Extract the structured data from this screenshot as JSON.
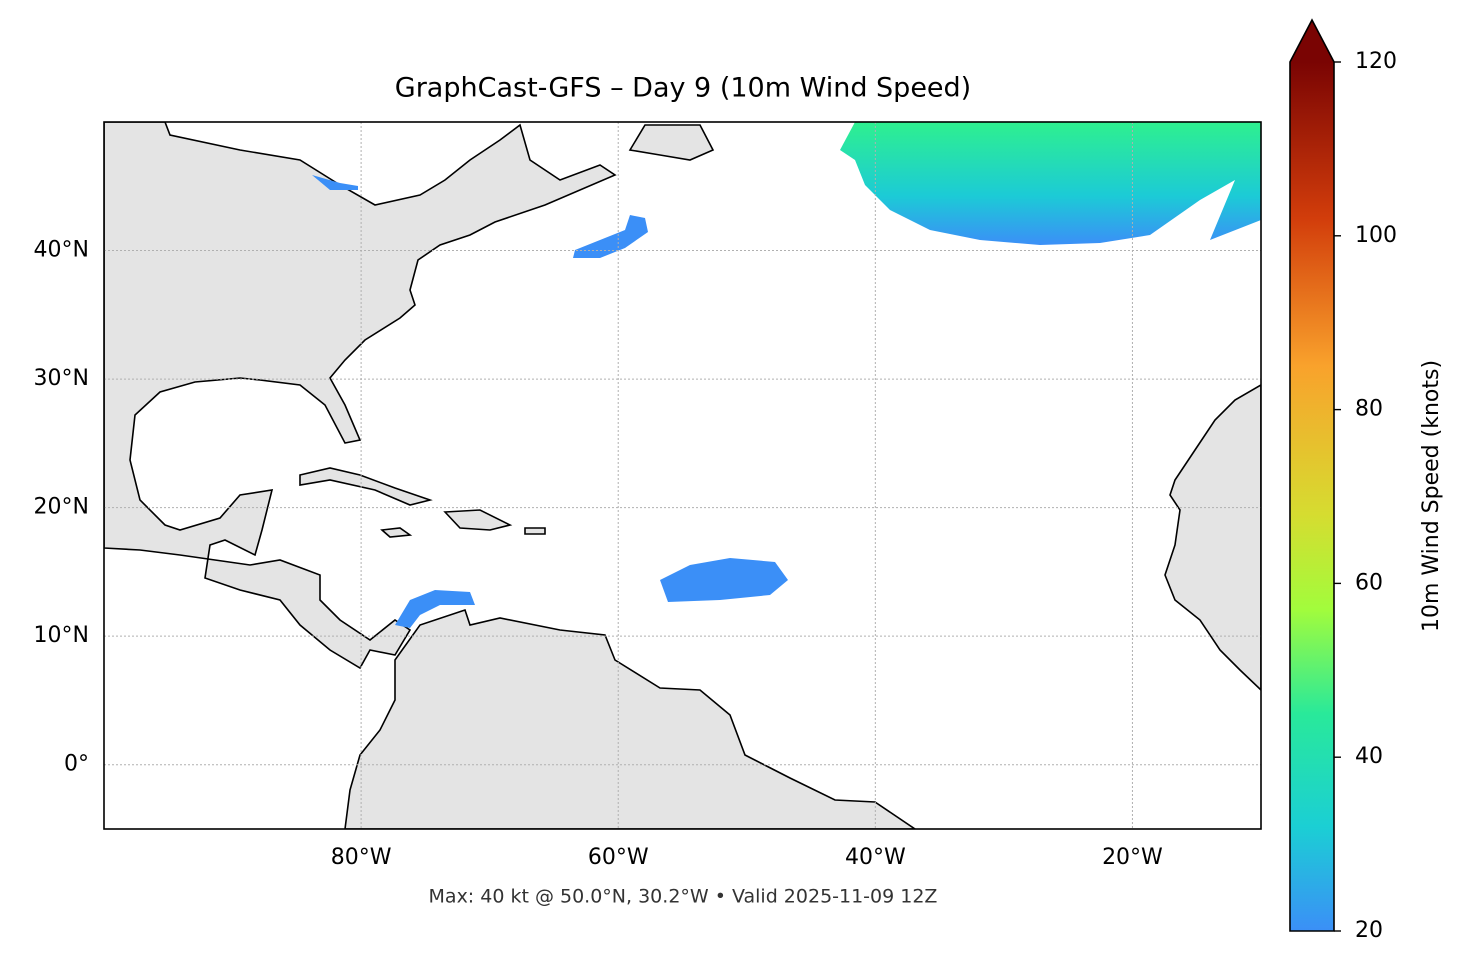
{
  "map": {
    "title": "GraphCast-GFS – Day 9 (10m Wind Speed)",
    "lonlim": [
      -100,
      -10
    ],
    "latlim": [
      -5,
      50
    ],
    "xticks": [
      {
        "value": -80,
        "label": "80°W"
      },
      {
        "value": -60,
        "label": "60°W"
      },
      {
        "value": -40,
        "label": "40°W"
      },
      {
        "value": -20,
        "label": "20°W"
      }
    ],
    "yticks": [
      {
        "value": 0,
        "label": "0°"
      },
      {
        "value": 10,
        "label": "10°N"
      },
      {
        "value": 20,
        "label": "20°N"
      },
      {
        "value": 30,
        "label": "30°N"
      },
      {
        "value": 40,
        "label": "40°N"
      }
    ],
    "grid": true,
    "footnote": "Max: 40 kt @ 50.0°N, 30.2°W • Valid 2025-11-09 12Z"
  },
  "colorbar": {
    "label": "10m Wind Speed (knots)",
    "lim": [
      20,
      120
    ],
    "ticks": [
      20,
      40,
      60,
      80,
      100,
      120
    ]
  }
}
